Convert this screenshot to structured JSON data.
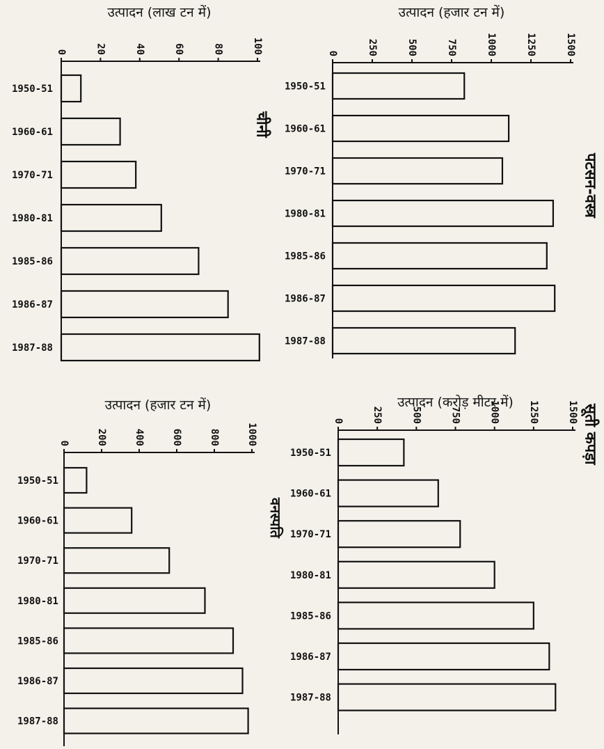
{
  "chart_data": [
    {
      "id": "sugar",
      "type": "bar",
      "orientation": "horizontal",
      "title": "चीनी",
      "xlabel": "उत्पादन (लाख टन में)",
      "xlim": [
        0,
        100
      ],
      "ticks": [
        0,
        20,
        40,
        60,
        80,
        100
      ],
      "tick_labels": [
        "0",
        "20",
        "40",
        "60",
        "80",
        "100"
      ],
      "categories": [
        "1950-51",
        "1960-61",
        "1970-71",
        "1980-81",
        "1985-86",
        "1986-87",
        "1987-88"
      ],
      "values": [
        10,
        30,
        38,
        51,
        70,
        85,
        101
      ]
    },
    {
      "id": "jute",
      "type": "bar",
      "orientation": "horizontal",
      "title": "पटसन-वस्त्र",
      "xlabel": "उत्पादन (हजार टन में)",
      "xlim": [
        0,
        1500
      ],
      "ticks": [
        0,
        250,
        500,
        750,
        1000,
        1250,
        1500
      ],
      "tick_labels": [
        "0",
        "250",
        "500",
        "750",
        "1000",
        "1250",
        "1500"
      ],
      "categories": [
        "1950-51",
        "1960-61",
        "1970-71",
        "1980-81",
        "1985-86",
        "1986-87",
        "1987-88"
      ],
      "values": [
        830,
        1110,
        1070,
        1390,
        1350,
        1400,
        1150
      ]
    },
    {
      "id": "vanaspati",
      "type": "bar",
      "orientation": "horizontal",
      "title": "वनस्पति",
      "xlabel": "उत्पादन (हजार टन में)",
      "xlim": [
        0,
        1000
      ],
      "ticks": [
        0,
        200,
        400,
        600,
        800,
        1000
      ],
      "tick_labels": [
        "0",
        "200",
        "400",
        "600",
        "800",
        "1000"
      ],
      "categories": [
        "1950-51",
        "1960-61",
        "1970-71",
        "1980-81",
        "1985-86",
        "1986-87",
        "1987-88"
      ],
      "values": [
        120,
        360,
        560,
        750,
        900,
        950,
        980
      ]
    },
    {
      "id": "cotton",
      "type": "bar",
      "orientation": "horizontal",
      "title": "सूती कपड़ा",
      "xlabel": "उत्पादन (करोड़ मीटर में)",
      "xlim": [
        0,
        1500
      ],
      "ticks": [
        0,
        250,
        500,
        750,
        1000,
        1250,
        1500
      ],
      "tick_labels": [
        "0",
        "250",
        "500",
        "750",
        "1000",
        "1250",
        "1500"
      ],
      "categories": [
        "1950-51",
        "1960-61",
        "1970-71",
        "1980-81",
        "1985-86",
        "1986-87",
        "1987-88"
      ],
      "values": [
        420,
        640,
        780,
        1000,
        1250,
        1350,
        1390
      ]
    }
  ]
}
